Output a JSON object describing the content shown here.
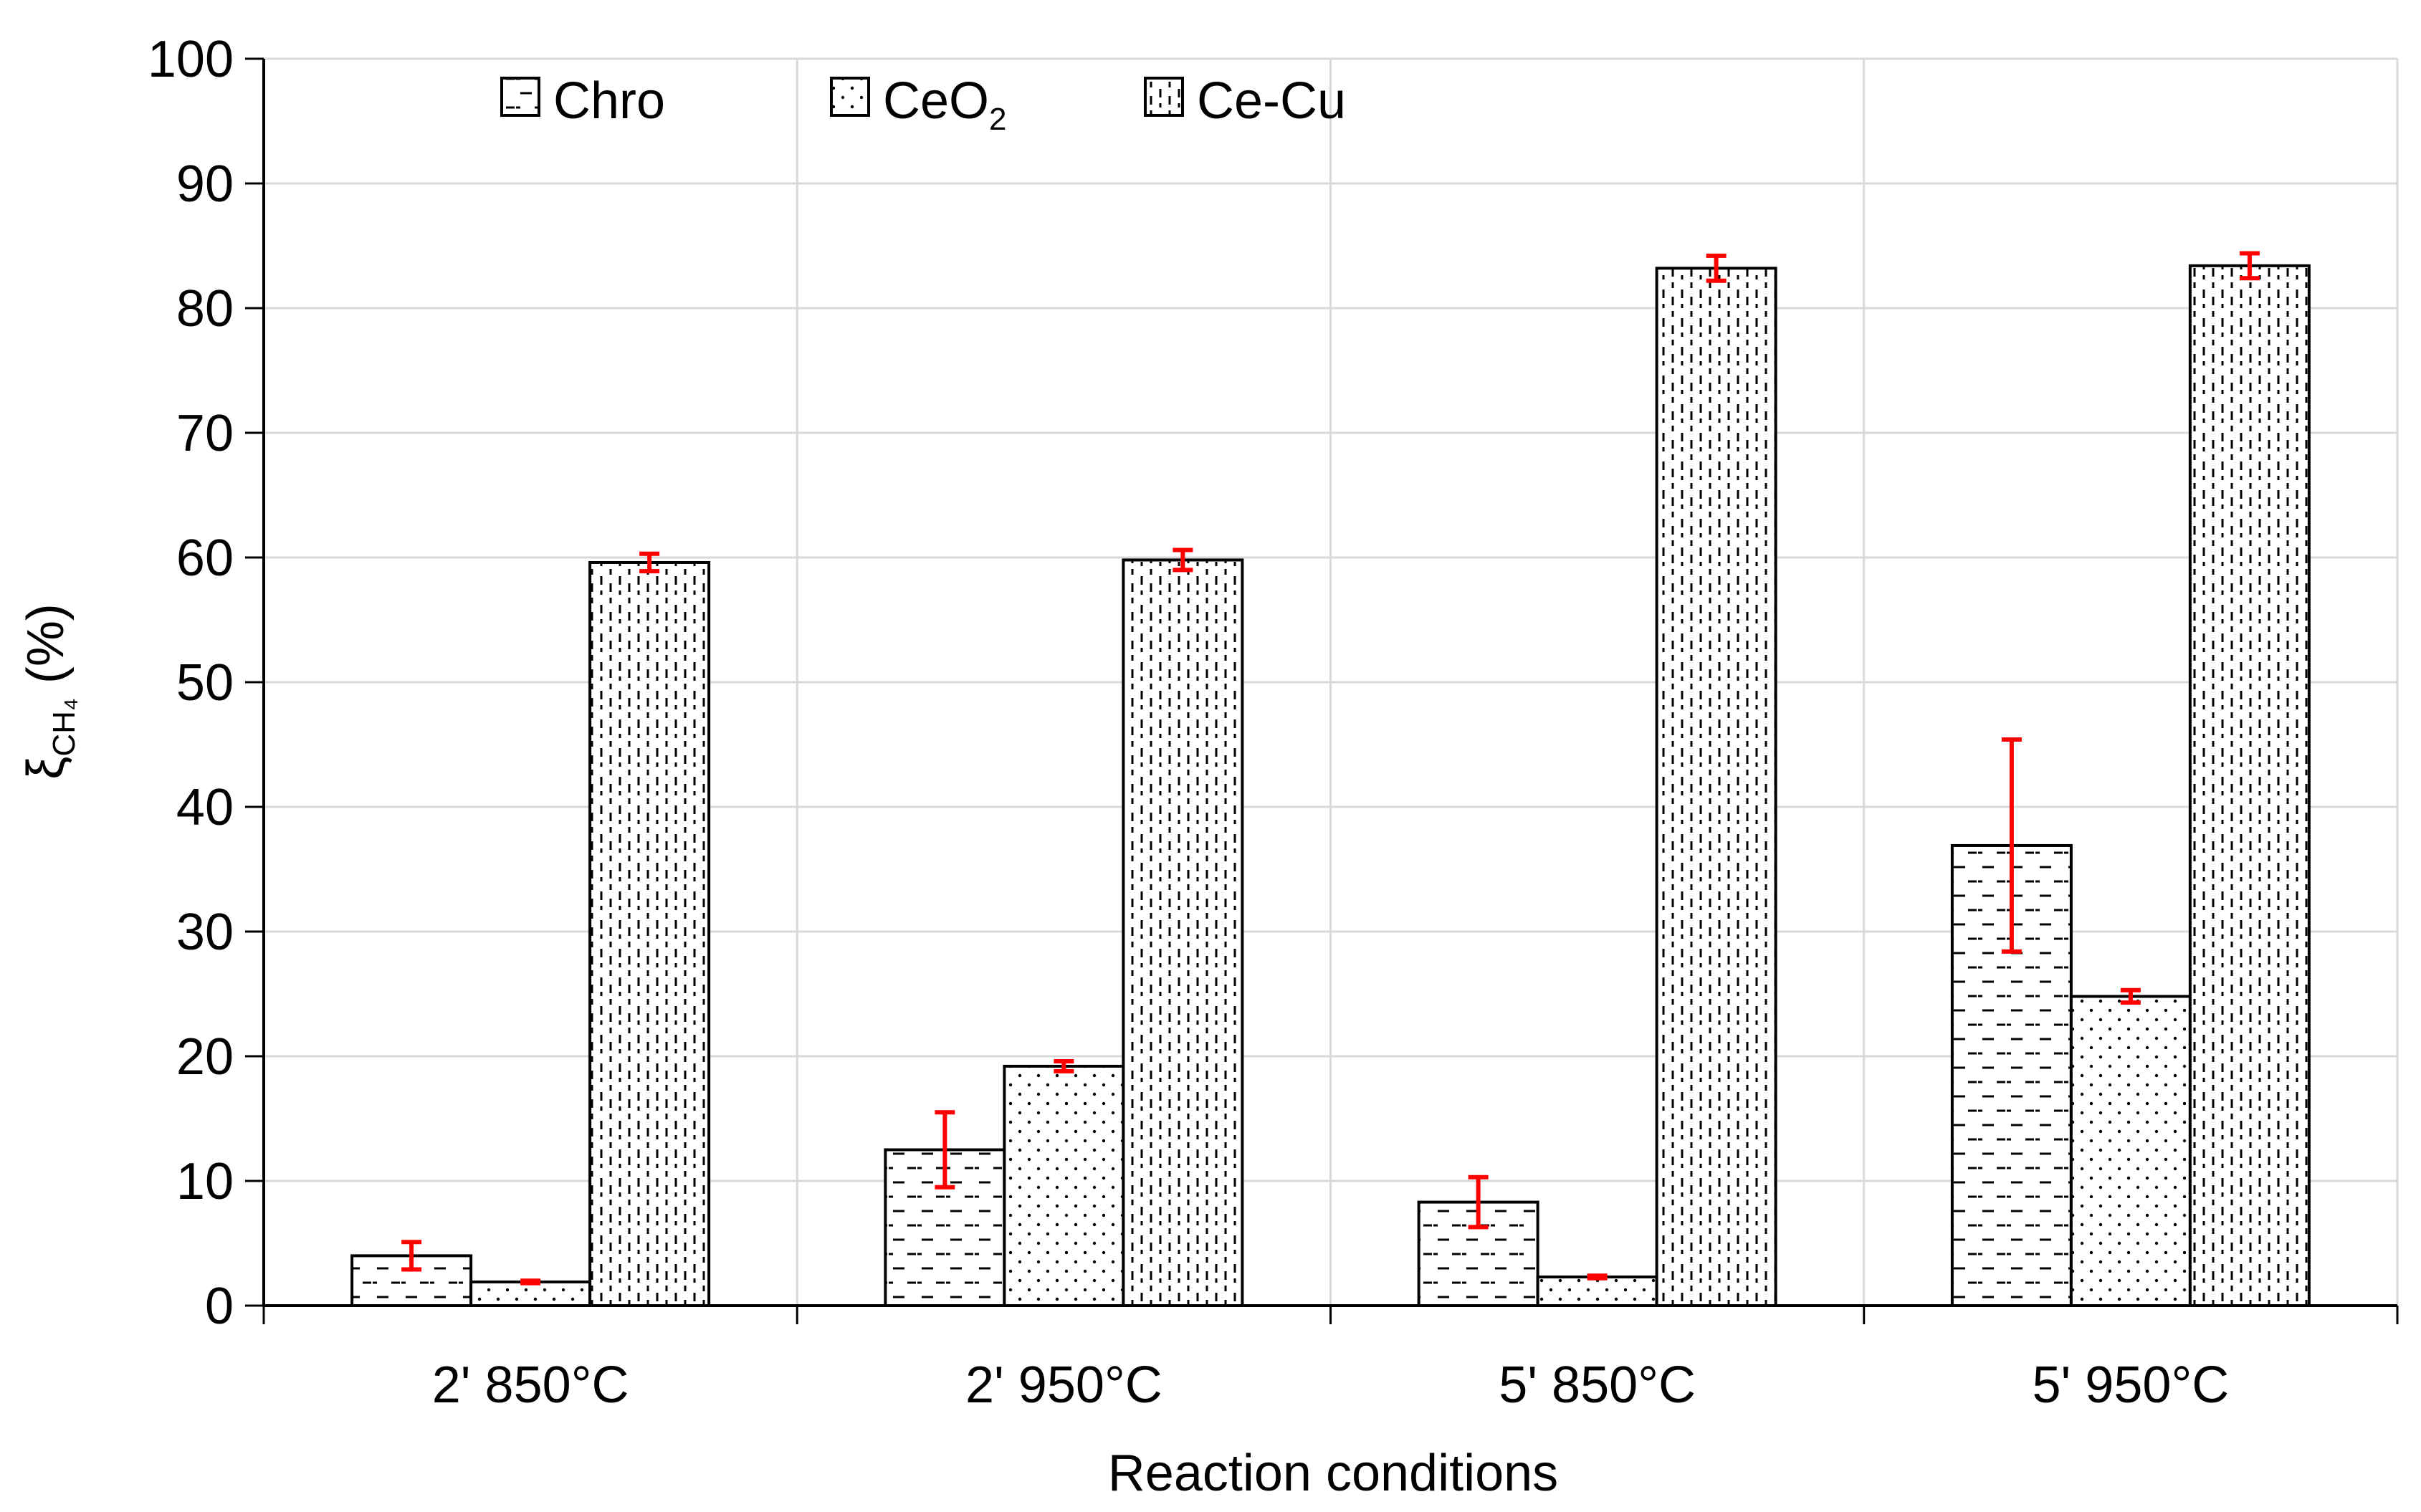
{
  "chart_data": {
    "type": "bar",
    "title": "",
    "xlabel": "Reaction conditions",
    "ylabel": {
      "symbol": "ξ",
      "subscript": "CH₄",
      "unit": " (%)"
    },
    "categories": [
      "2' 850°C",
      "2' 950°C",
      "5' 850°C",
      "5' 950°C"
    ],
    "ylim": [
      0,
      100
    ],
    "yticks": [
      0,
      10,
      20,
      30,
      40,
      50,
      60,
      70,
      80,
      90,
      100
    ],
    "grid": true,
    "legend_position": "top-left",
    "series": [
      {
        "name": "Chro",
        "legend_main": "Chro",
        "legend_sub": "",
        "pattern": "dash",
        "values": [
          4.0,
          12.5,
          8.3,
          36.9
        ],
        "errors": [
          1.1,
          3.0,
          2.0,
          8.5
        ]
      },
      {
        "name": "CeO2",
        "legend_main": "CeO",
        "legend_sub": "2",
        "pattern": "dot",
        "values": [
          1.9,
          19.2,
          2.3,
          24.8
        ],
        "errors": [
          0.1,
          0.4,
          0.1,
          0.5
        ]
      },
      {
        "name": "Ce-Cu",
        "legend_main": "Ce-Cu",
        "legend_sub": "",
        "pattern": "dashdot",
        "values": [
          59.6,
          59.8,
          83.2,
          83.4
        ],
        "errors": [
          0.7,
          0.8,
          1.0,
          1.0
        ]
      }
    ],
    "colors": {
      "bar_fill": "#ffffff",
      "bar_edge": "#000000",
      "error_bar": "#ff0000",
      "grid": "#d9d9d9",
      "axis": "#000000"
    }
  }
}
